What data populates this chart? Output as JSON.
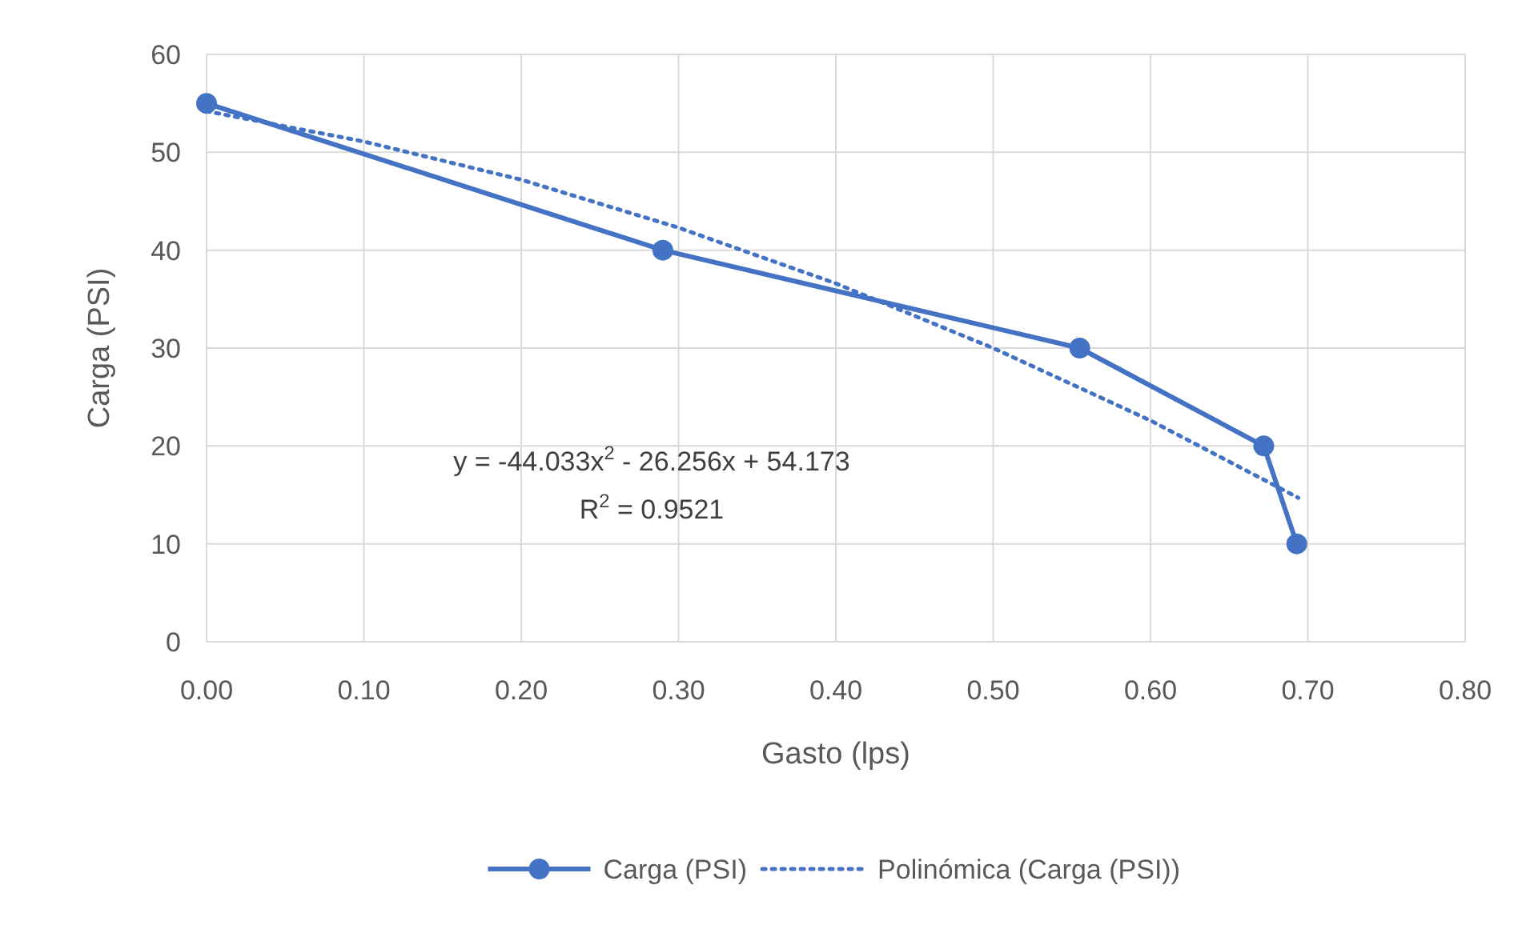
{
  "chart_data": {
    "type": "line",
    "xlabel": "Gasto (lps)",
    "ylabel": "Carga (PSI)",
    "xlim": [
      0,
      0.8
    ],
    "xticks": [
      {
        "value": 0,
        "label": "0.00"
      },
      {
        "value": 0.1,
        "label": "0.10"
      },
      {
        "value": 0.2,
        "label": "0.20"
      },
      {
        "value": 0.3,
        "label": "0.30"
      },
      {
        "value": 0.4,
        "label": "0.40"
      },
      {
        "value": 0.5,
        "label": "0.50"
      },
      {
        "value": 0.6,
        "label": "0.60"
      },
      {
        "value": 0.7,
        "label": "0.70"
      },
      {
        "value": 0.8,
        "label": "0.80"
      }
    ],
    "ylim": [
      0,
      60
    ],
    "yticks": [
      0,
      10,
      20,
      30,
      40,
      50,
      60
    ],
    "grid": true,
    "legend": "bottom",
    "series": [
      {
        "name": "Carga (PSI)",
        "color": "#4472c4",
        "marker": "circle",
        "line_style": "solid",
        "x": [
          0,
          0.29,
          0.555,
          0.672,
          0.693
        ],
        "values": [
          55,
          40,
          30,
          20,
          10
        ]
      },
      {
        "name": "Polinómica (Carga (PSI))",
        "color": "#4472c4",
        "marker": "none",
        "line_style": "dotted",
        "x": [
          0,
          0.1,
          0.2,
          0.3,
          0.4,
          0.5,
          0.6,
          0.694
        ],
        "values": [
          54.2,
          51.1,
          47.2,
          42.3,
          36.6,
          30.0,
          22.6,
          14.7
        ]
      }
    ],
    "annotations": [
      "y = -44.033x$^{2}$ - 26.256x + 54.173",
      "R$^{2}$ = 0.9521"
    ]
  }
}
